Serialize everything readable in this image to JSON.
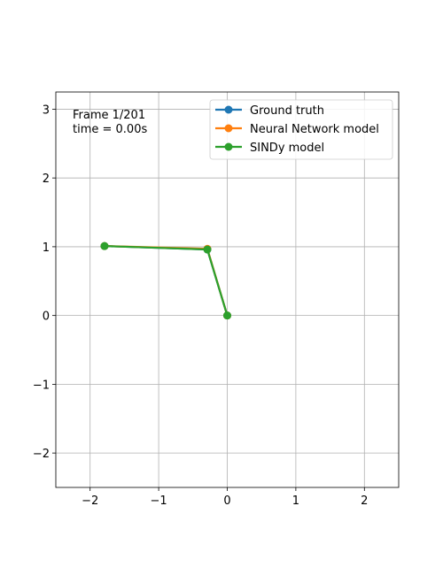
{
  "chart_data": {
    "type": "line",
    "title": "",
    "xlabel": "",
    "ylabel": "",
    "xlim": [
      -2.5,
      2.5
    ],
    "ylim": [
      -2.5,
      3.25
    ],
    "xticks": [
      -2,
      -1,
      0,
      1,
      2
    ],
    "yticks": [
      -2,
      -1,
      0,
      1,
      2,
      3
    ],
    "xtick_labels": [
      "−2",
      "−1",
      "0",
      "1",
      "2"
    ],
    "ytick_labels": [
      "−2",
      "−1",
      "0",
      "1",
      "2",
      "3"
    ],
    "grid": true,
    "legend_position": "top-right",
    "annotation": {
      "frame": "Frame 1/201",
      "time": "time = 0.00s"
    },
    "series": [
      {
        "name": "Ground truth",
        "color": "#1f77b4",
        "x": [
          0,
          -0.29,
          -1.79
        ],
        "y": [
          0,
          0.96,
          1.01
        ]
      },
      {
        "name": "Neural Network model",
        "color": "#ff7f0e",
        "x": [
          0,
          -0.29,
          -1.79
        ],
        "y": [
          0,
          0.97,
          1.01
        ]
      },
      {
        "name": "SINDy model",
        "color": "#2ca02c",
        "x": [
          0,
          -0.29,
          -1.79
        ],
        "y": [
          0,
          0.96,
          1.01
        ]
      }
    ]
  }
}
